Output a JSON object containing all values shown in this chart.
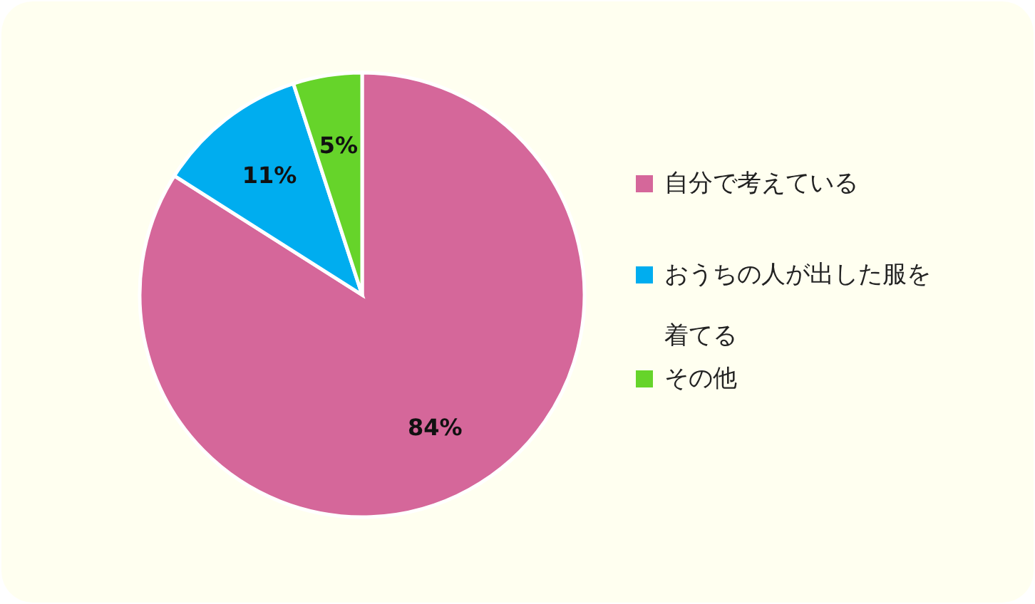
{
  "chart_data": {
    "type": "pie",
    "categories": [
      "自分で考えている",
      "おうちの人が出した服を着てる",
      "その他"
    ],
    "values": [
      84,
      11,
      5
    ],
    "colors": [
      "#d5679a",
      "#00adef",
      "#66d42a"
    ],
    "value_labels": [
      "84%",
      "11%",
      "5%"
    ],
    "legend": "right"
  }
}
